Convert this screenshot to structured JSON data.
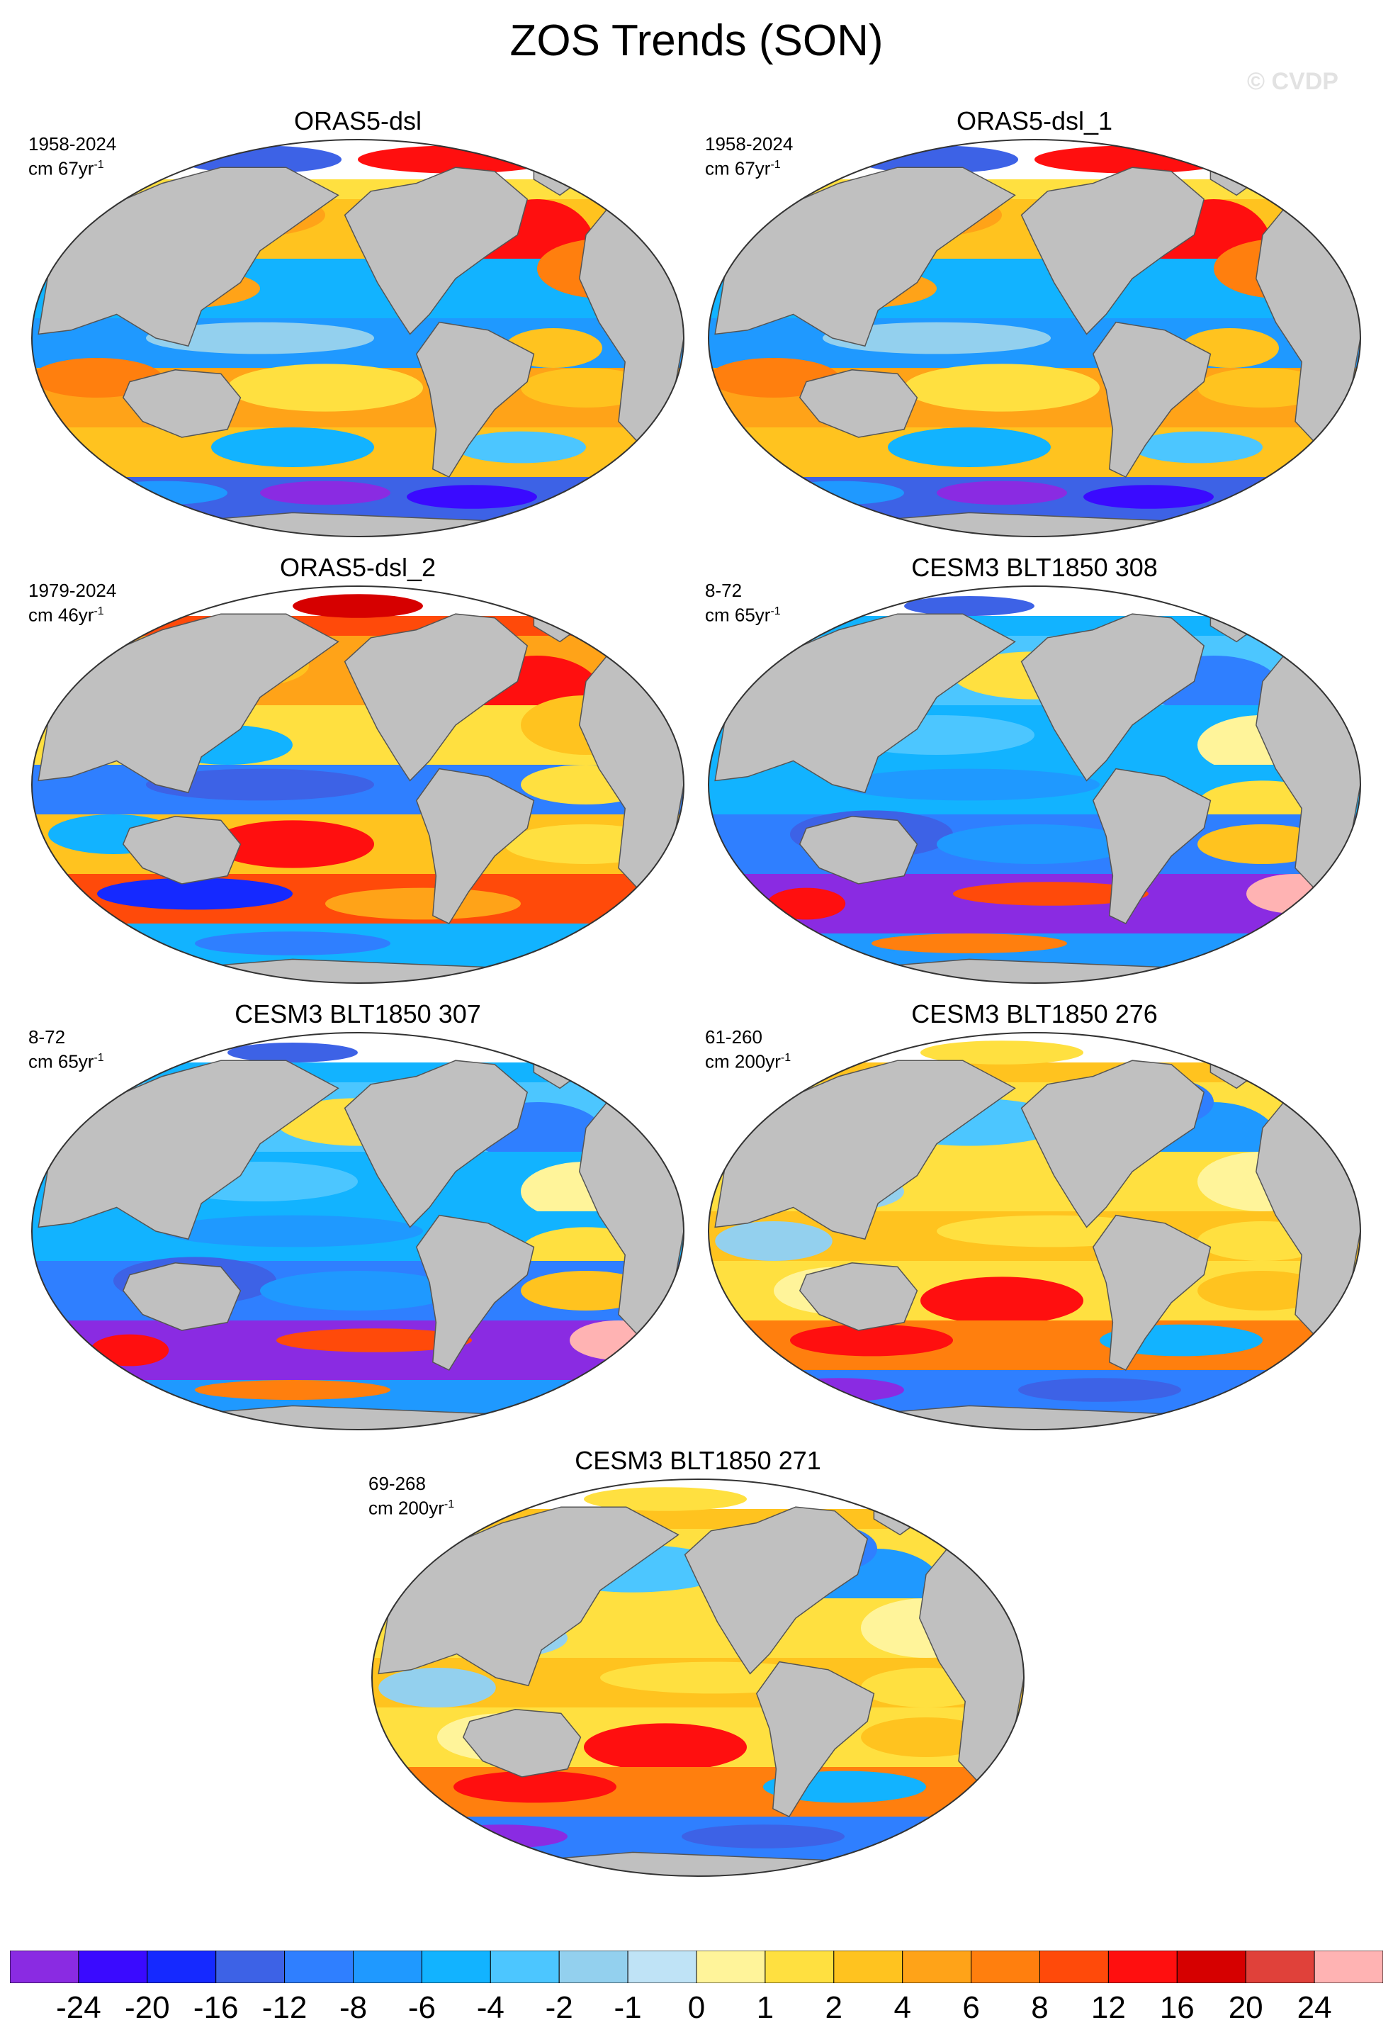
{
  "title": "ZOS Trends (SON)",
  "watermark": "© CVDP",
  "panels": [
    {
      "title": "ORAS5-dsl",
      "period": "1958-2024",
      "units_prefix": "cm 67yr",
      "units_sup": "-1",
      "pattern": "warm-north"
    },
    {
      "title": "ORAS5-dsl_1",
      "period": "1958-2024",
      "units_prefix": "cm 67yr",
      "units_sup": "-1",
      "pattern": "warm-north"
    },
    {
      "title": "ORAS5-dsl_2",
      "period": "1979-2024",
      "units_prefix": "cm 46yr",
      "units_sup": "-1",
      "pattern": "mixed"
    },
    {
      "title": "CESM3 BLT1850 308",
      "period": "8-72",
      "units_prefix": "cm 65yr",
      "units_sup": "-1",
      "pattern": "cool"
    },
    {
      "title": "CESM3 BLT1850 307",
      "period": "8-72",
      "units_prefix": "cm 65yr",
      "units_sup": "-1",
      "pattern": "cool"
    },
    {
      "title": "CESM3 BLT1850 276",
      "period": "61-260",
      "units_prefix": "cm 200yr",
      "units_sup": "-1",
      "pattern": "warm"
    },
    {
      "title": "CESM3 BLT1850 271",
      "period": "69-268",
      "units_prefix": "cm 200yr",
      "units_sup": "-1",
      "pattern": "warm"
    }
  ],
  "colorbar": {
    "colors": [
      "#8a2be2",
      "#3a0aff",
      "#1529ff",
      "#3d62e6",
      "#2f7fff",
      "#1f99ff",
      "#12b3ff",
      "#4cc6ff",
      "#93d0ee",
      "#bfe3f6",
      "#fff49a",
      "#ffe040",
      "#ffc31f",
      "#ffa318",
      "#ff7f0e",
      "#ff4a0a",
      "#ff0f0f",
      "#d60000",
      "#e0413a",
      "#ffb3b3"
    ],
    "labels": [
      "-24",
      "-20",
      "-16",
      "-12",
      "-8",
      "-6",
      "-4",
      "-2",
      "-1",
      "0",
      "1",
      "2",
      "4",
      "6",
      "8",
      "12",
      "16",
      "20",
      "24"
    ]
  },
  "land_color": "#c0c0c0"
}
